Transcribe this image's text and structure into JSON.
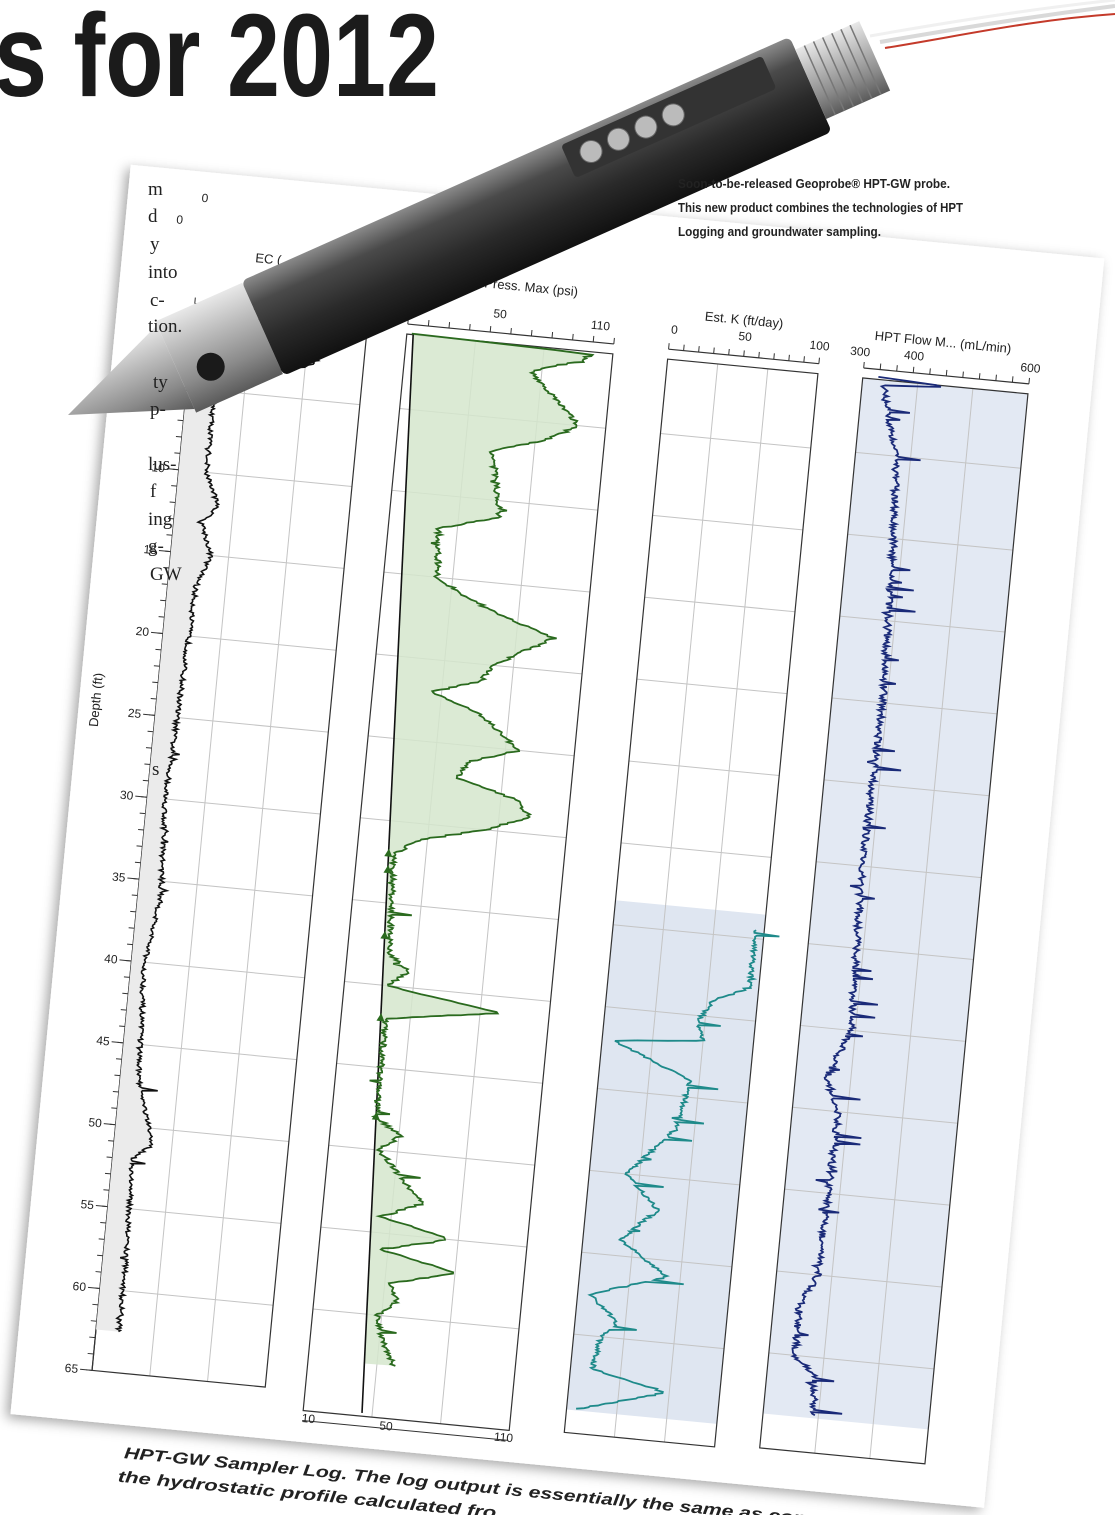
{
  "header": {
    "title": "s for 2012"
  },
  "body_fragments": [
    "m",
    "d",
    "y",
    "into",
    "c-",
    "tion.",
    "ty",
    "p-",
    "lus-",
    "f",
    "ing",
    "g-",
    "GW",
    "s"
  ],
  "probe_caption": {
    "lines": [
      "Soon-to-be-released Geoprobe® HPT-GW probe.",
      "This new product combines the technologies of HPT",
      "Logging and groundwater sampling."
    ]
  },
  "log": {
    "depth_axis": {
      "label": "Depth (ft)",
      "ticks": [
        10,
        15,
        20,
        25,
        30,
        35,
        40,
        45,
        50,
        55,
        60,
        65
      ]
    },
    "tracks": [
      {
        "title": "EC (",
        "ticks": [
          0,
          0
        ]
      },
      {
        "title": "HPT Press. Max (psi)",
        "ticks": [
          10,
          50,
          110
        ],
        "bottom_ticks": [
          10,
          50,
          110
        ]
      },
      {
        "title": "Est. K (ft/day)",
        "ticks": [
          0,
          50,
          100
        ]
      },
      {
        "title": "HPT Flow M... (mL/min)",
        "ticks": [
          300,
          400,
          600
        ]
      }
    ]
  },
  "caption": {
    "lines": [
      "HPT-GW Sampler Log. The log output is essentially the same as convention",
      "the hydrostatic profile calculated fro"
    ]
  }
}
